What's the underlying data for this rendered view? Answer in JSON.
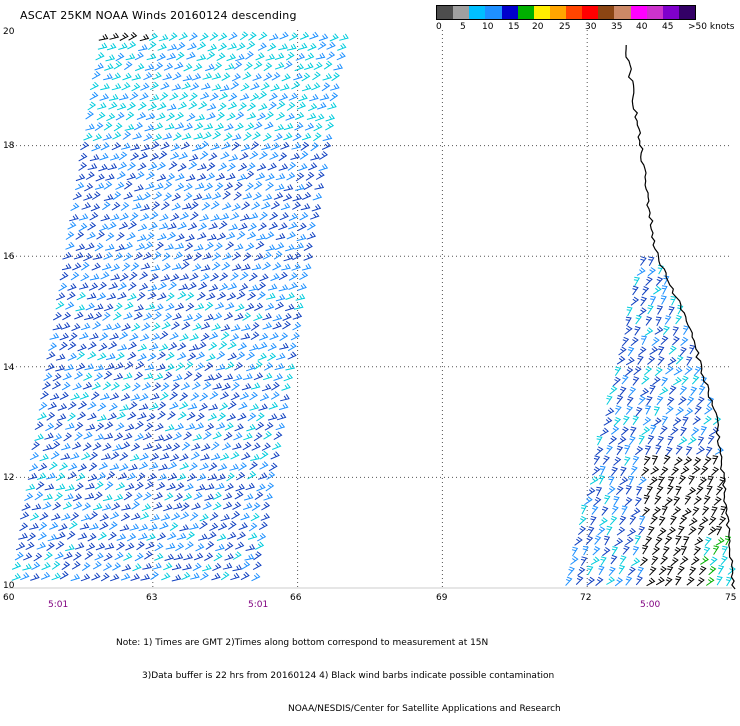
{
  "title": "ASCAT 25KM NOAA Winds 20160124 descending",
  "colorbar": {
    "colors": [
      "#4d4d4d",
      "#a0a0a0",
      "#00bfff",
      "#1e90ff",
      "#0000cd",
      "#00b000",
      "#ffee00",
      "#ffa500",
      "#ff4500",
      "#ff0000",
      "#8b4513",
      "#cc8866",
      "#ff00ff",
      "#cc33cc",
      "#8000cc",
      "#330066"
    ],
    "labels": [
      "0",
      "5",
      "10",
      "15",
      "20",
      "25",
      "30",
      "35",
      "40",
      "45",
      ">50 knots"
    ]
  },
  "lat_ticks": [
    "20",
    "18",
    "16",
    "14",
    "12",
    "10"
  ],
  "lon_ticks": [
    "60",
    "63",
    "66",
    "69",
    "72",
    "75"
  ],
  "times": [
    "5:01",
    "5:01",
    "5:00"
  ],
  "notes": [
    "Note: 1) Times are GMT 2)Times along bottom correspond to measurement at 15N",
    "3)Data buffer is 22 hrs from 20160124 4) Black wind barbs indicate possible contamination",
    "NOAA/NESDIS/Center for Satellite Applications and Research"
  ],
  "wind_colors": {
    "light": "#00ccdd",
    "mid": "#1e90ff",
    "dark": "#1040c0",
    "contaminated": "#000000",
    "green": "#00b000"
  },
  "coast_color": "#000000",
  "grid_color": "#555555"
}
